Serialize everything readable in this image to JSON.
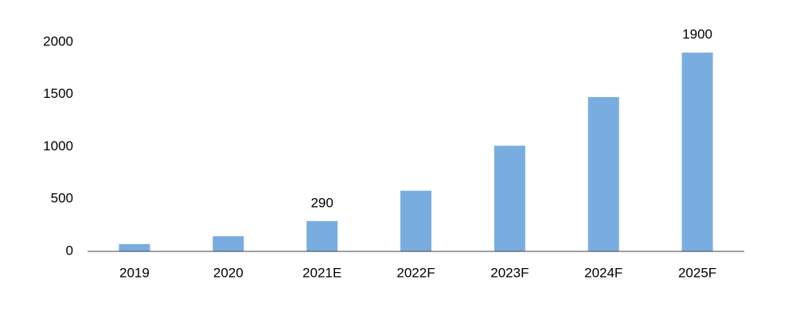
{
  "chart_data": {
    "type": "bar",
    "categories": [
      "2019",
      "2020",
      "2021E",
      "2022F",
      "2023F",
      "2024F",
      "2025F"
    ],
    "values": [
      70,
      145,
      290,
      580,
      1010,
      1475,
      1900
    ],
    "value_labels": [
      null,
      null,
      "290",
      null,
      null,
      null,
      "1900"
    ],
    "color": "#7aaddf",
    "ylim": [
      0,
      2000
    ],
    "yticks": [
      0,
      500,
      1000,
      1500,
      2000
    ],
    "grid": false
  }
}
